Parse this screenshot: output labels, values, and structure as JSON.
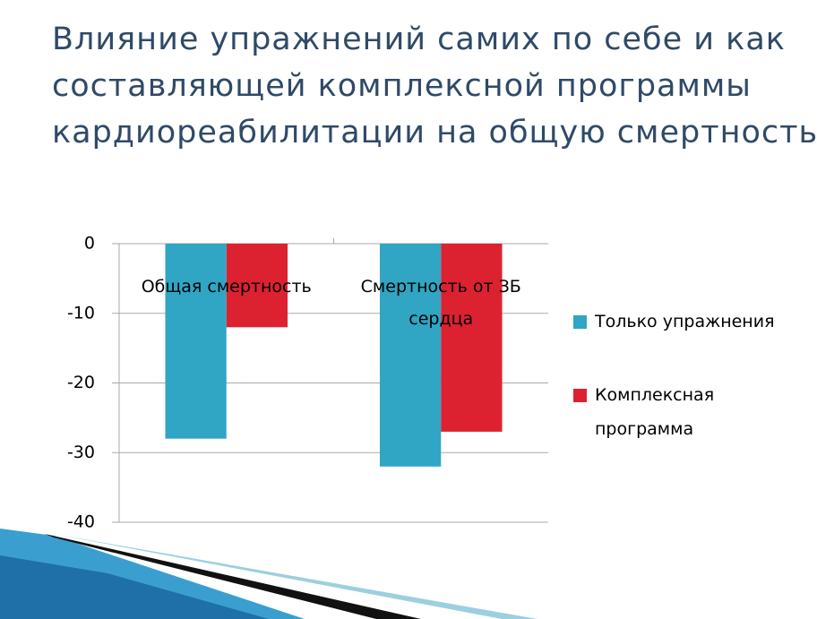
{
  "chart_data": {
    "type": "bar",
    "title": "Влияние упражнений самих по себе и как составляющей комплексной программы кардиореабилитации на общую смертность",
    "categories": [
      "Общая смертность",
      "Смертность от ЗБ сердца"
    ],
    "series": [
      {
        "name": "Только упражнения",
        "color": "#31a5c4",
        "values": [
          -28,
          -32
        ]
      },
      {
        "name": "Комплексная программа",
        "color": "#dc2230",
        "values": [
          -12,
          -27
        ]
      }
    ],
    "ylim": [
      -40,
      0
    ],
    "yticks": [
      0,
      -10,
      -20,
      -30,
      -40
    ],
    "grid": true,
    "legend": "right"
  }
}
